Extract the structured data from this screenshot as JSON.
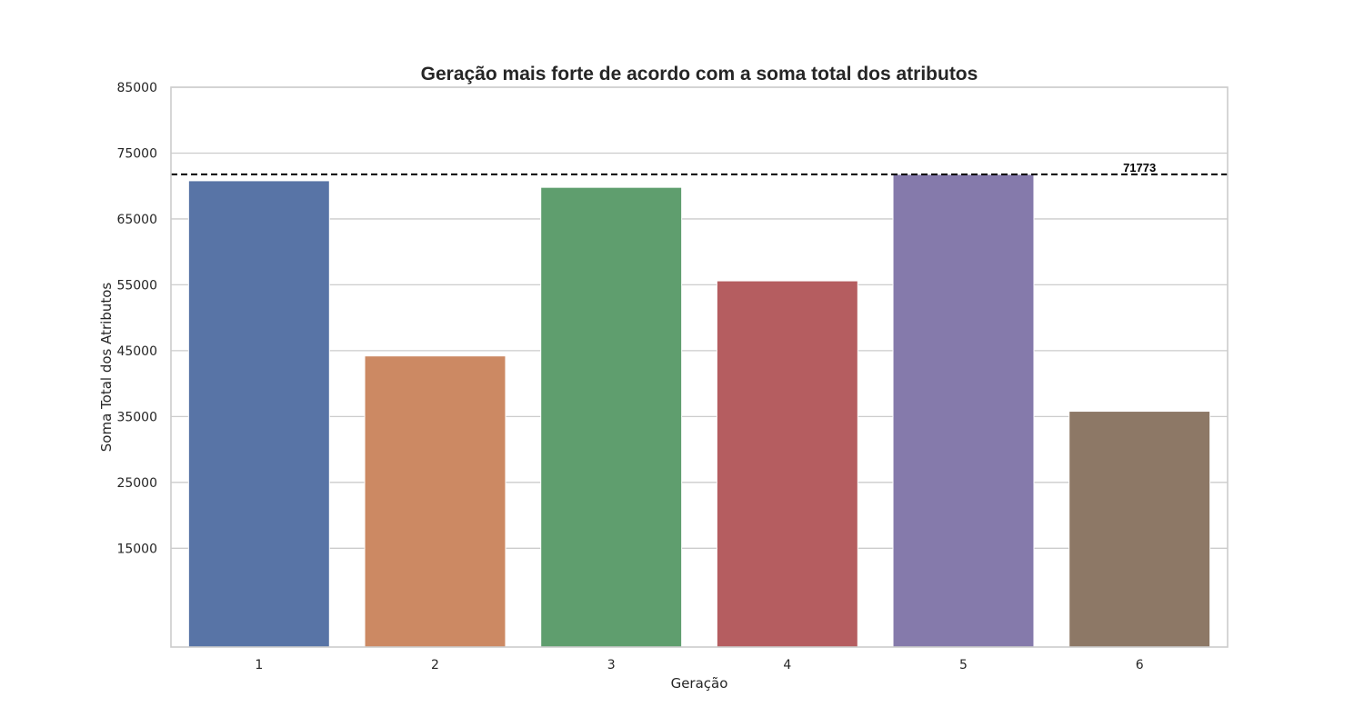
{
  "chart_data": {
    "type": "bar",
    "title": "Geração mais forte de acordo com a soma total dos atributos",
    "xlabel": "Geração",
    "ylabel": "Soma Total dos Atributos",
    "categories": [
      "1",
      "2",
      "3",
      "4",
      "5",
      "6"
    ],
    "values": [
      70800,
      44200,
      69800,
      55600,
      71773,
      35800
    ],
    "colors": [
      "#5874a6",
      "#cc8963",
      "#5f9e6e",
      "#b55d60",
      "#857aab",
      "#8d7866"
    ],
    "ylim": [
      0,
      85000
    ],
    "yticks": [
      15000,
      25000,
      35000,
      45000,
      55000,
      65000,
      75000,
      85000
    ],
    "ytick_labels": [
      "15000",
      "25000",
      "35000",
      "45000",
      "55000",
      "65000",
      "75000",
      "85000"
    ],
    "grid": true,
    "reference_line": {
      "value": 71773,
      "label": "71773",
      "style": "dashed",
      "color": "#000000"
    }
  }
}
